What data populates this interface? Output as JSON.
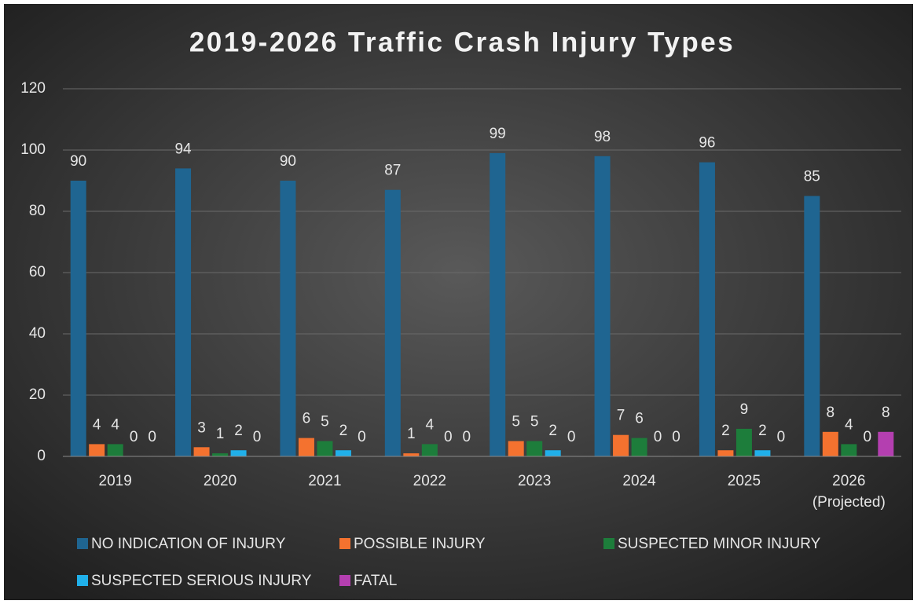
{
  "chart_data": {
    "type": "bar",
    "title": "2019-2026 Traffic Crash Injury Types",
    "categories": [
      "2019",
      "2020",
      "2021",
      "2022",
      "2023",
      "2024",
      "2025",
      "2026 (Projected)"
    ],
    "series": [
      {
        "name": "NO INDICATION OF INJURY",
        "color": "#1f6591",
        "values": [
          90,
          94,
          90,
          87,
          99,
          98,
          96,
          85
        ]
      },
      {
        "name": "POSSIBLE INJURY",
        "color": "#f4722f",
        "values": [
          4,
          3,
          6,
          1,
          5,
          7,
          2,
          8
        ]
      },
      {
        "name": "SUSPECTED MINOR INJURY",
        "color": "#1d7d3b",
        "values": [
          4,
          1,
          5,
          4,
          5,
          6,
          9,
          4
        ]
      },
      {
        "name": "SUSPECTED SERIOUS INJURY",
        "color": "#20b0ea",
        "values": [
          0,
          2,
          2,
          0,
          2,
          0,
          2,
          0
        ]
      },
      {
        "name": "FATAL",
        "color": "#b43fb0",
        "values": [
          0,
          0,
          0,
          0,
          0,
          0,
          0,
          8
        ]
      }
    ],
    "ylim": [
      0,
      120
    ],
    "yticks": [
      0,
      20,
      40,
      60,
      80,
      100,
      120
    ],
    "grid": true,
    "legend": "bottom"
  }
}
